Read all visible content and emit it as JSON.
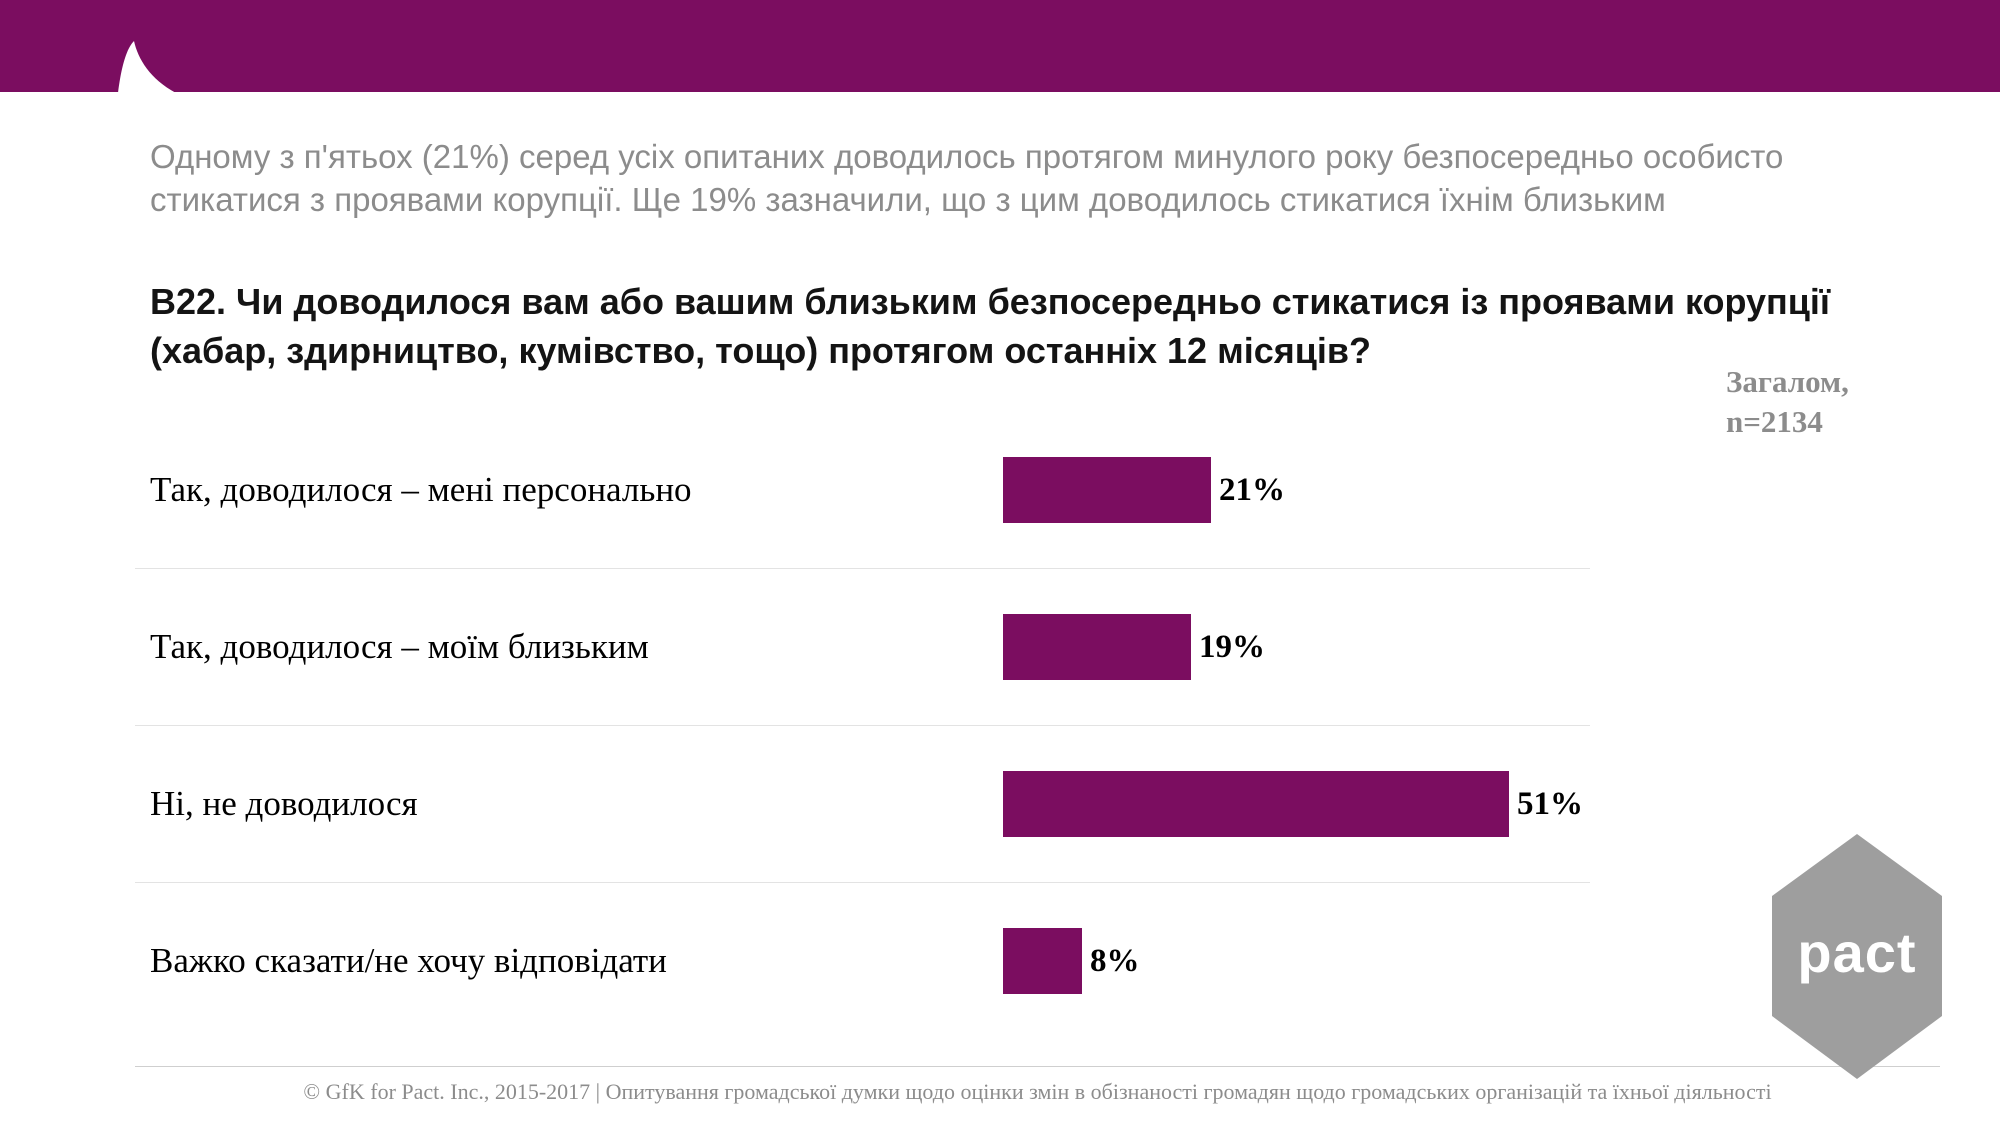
{
  "slide": {
    "subtitle": "Одному з п'ятьох (21%) серед усіх опитаних доводилось протягом минулого року безпосередньо особисто стикатися з проявами корупції. Ще 19% зазначили, що з цим доводилось стикатися їхнім близьким",
    "question": "В22. Чи доводилося вам або вашим близьким безпосередньо стикатися із проявами корупції (хабар, здирництво, кумівство, тощо) протягом останніх 12 місяців?",
    "sample_note_line1": "Загалом,",
    "sample_note_line2": "n=2134",
    "footer": "© GfK for Pact. Inc., 2015-2017 | Опитування громадської думки щодо оцінки змін в обізнаності громадян щодо громадських організацій та їхньої діяльності",
    "logo_text": "pact"
  },
  "colors": {
    "accent": "#7B0D60",
    "bar": "#7B0D60",
    "gray_text": "#8C8C8C",
    "logo_gray": "#9E9E9E"
  },
  "chart_data": {
    "type": "bar",
    "orientation": "horizontal",
    "title": "",
    "categories": [
      "Так, доводилося – мені персонально",
      "Так, доводилося – моїм близьким",
      "Ні, не доводилося",
      "Важко сказати/не хочу відповідати"
    ],
    "values": [
      21,
      19,
      51,
      8
    ],
    "value_labels": [
      "21%",
      "19%",
      "51%",
      "8%"
    ],
    "xlim": [
      0,
      60
    ],
    "grid": false,
    "legend": "none"
  }
}
